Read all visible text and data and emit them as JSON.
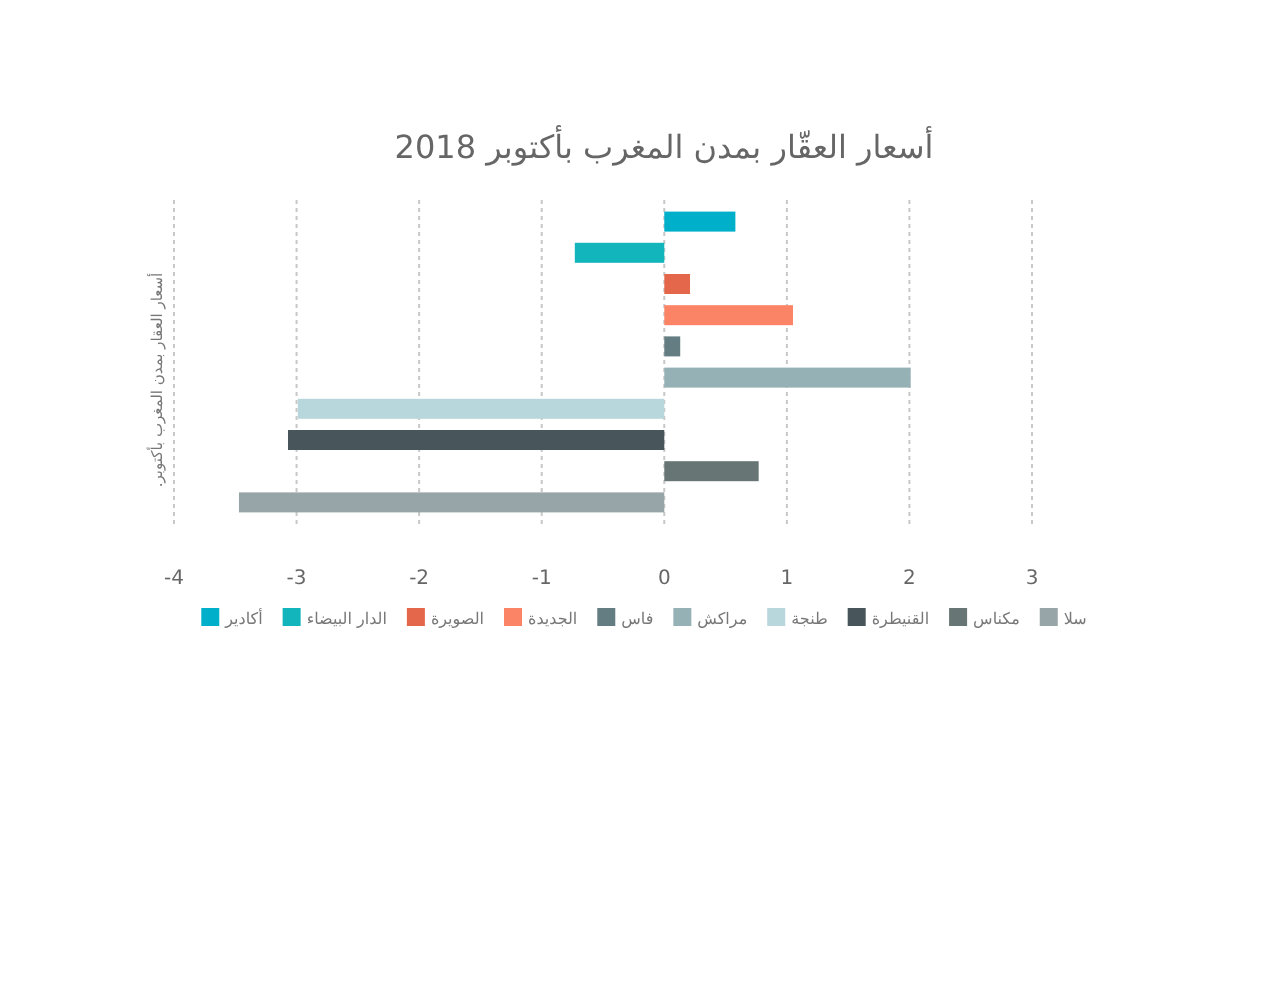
{
  "chart_data": {
    "type": "bar",
    "orientation": "horizontal",
    "title": "أسعار العقّار بمدن المغرب بأكتوبر 2018",
    "ylabel": "أسعار العقار بمدن المغرب بأكتوبر.",
    "categories": [
      null
    ],
    "series": [
      {
        "name": "أكادير",
        "color": "#00b0cb",
        "values": [
          0.58
        ]
      },
      {
        "name": "الدار البيضاء",
        "color": "#13b5bd",
        "values": [
          -0.73
        ]
      },
      {
        "name": "الصويرة",
        "color": "#e5674b",
        "values": [
          0.21
        ]
      },
      {
        "name": "الجديدة",
        "color": "#fc8466",
        "values": [
          1.05
        ]
      },
      {
        "name": "فاس",
        "color": "#647d82",
        "values": [
          0.13
        ]
      },
      {
        "name": "مراكش",
        "color": "#95b1b5",
        "values": [
          2.01
        ]
      },
      {
        "name": "طنجة",
        "color": "#b8d7dd",
        "values": [
          -2.99
        ]
      },
      {
        "name": "القنيطرة",
        "color": "#48565b",
        "values": [
          -3.07
        ]
      },
      {
        "name": "مكناس",
        "color": "#677575",
        "values": [
          0.77
        ]
      },
      {
        "name": "سلا",
        "color": "#98a5a8",
        "values": [
          -3.47
        ]
      }
    ],
    "xlim": [
      -4,
      3
    ],
    "xticks": [
      -4,
      -3,
      -2,
      -1,
      0,
      1,
      2,
      3
    ],
    "grid": "x",
    "legend": "bottom"
  }
}
